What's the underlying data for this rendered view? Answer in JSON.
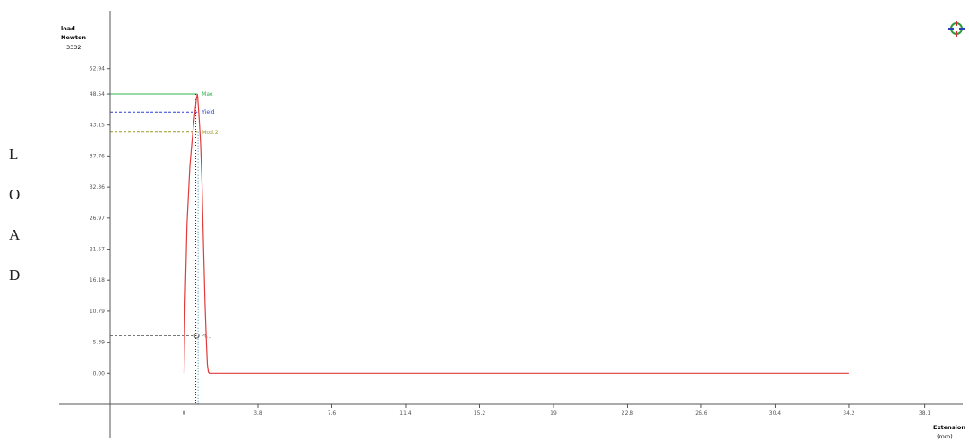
{
  "side_label": [
    "L",
    "O",
    "A",
    "D"
  ],
  "colors": {
    "curve": "#e23b3b",
    "axis": "#555555",
    "max_line": "#2fb24a",
    "yield_line": "#2c3fd0",
    "mod_line": "#9a9a2a",
    "point_line": "#777777",
    "corner_text": "#2a3fc0",
    "dotted_marker": "#2b8fbf"
  },
  "icons": {
    "zoom": "crosshair-zoom-icon"
  },
  "chart_data": {
    "type": "line",
    "title": "",
    "ylabel_lines": [
      "load",
      "Newton"
    ],
    "ymax_text": "3332",
    "xlabel_lines": [
      "Extension",
      "(mm)"
    ],
    "y_ticks": [
      "52.94",
      "48.54",
      "43.15",
      "37.76",
      "32.36",
      "26.97",
      "21.57",
      "16.18",
      "10.79",
      "5.39",
      "0.00"
    ],
    "x_ticks": [
      "0",
      "3.8",
      "7.6",
      "11.4",
      "15.2",
      "19",
      "22.8",
      "26.6",
      "30.4",
      "34.2",
      "38.1"
    ],
    "xlim": [
      -3.8,
      39.5
    ],
    "ylim": [
      -5.39,
      63.0
    ],
    "series": [
      {
        "x": [
          0.0,
          0.05,
          0.15,
          0.3,
          0.45,
          0.55,
          0.62,
          0.68,
          0.72,
          0.78,
          0.85,
          0.92,
          1.0,
          1.08,
          1.15,
          1.2,
          1.25,
          1.3,
          34.2
        ],
        "y": [
          0.0,
          12.0,
          26.0,
          36.0,
          42.0,
          45.0,
          47.5,
          48.54,
          47.0,
          44.0,
          40.0,
          33.0,
          22.0,
          12.0,
          5.0,
          1.5,
          0.2,
          0.0,
          0.0
        ]
      }
    ],
    "reference_lines": [
      {
        "label": "Max",
        "y": 48.54
      },
      {
        "label": "Yield",
        "y": 45.4
      },
      {
        "label": "Mod.2",
        "y": 41.9
      },
      {
        "label": "Pt.1",
        "y": 6.5
      }
    ]
  }
}
